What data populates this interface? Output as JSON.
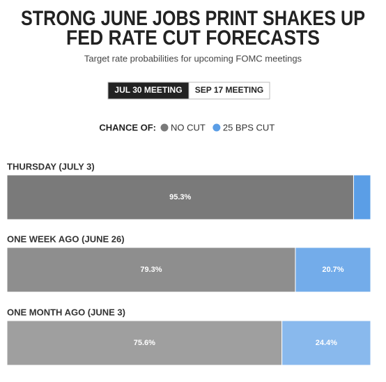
{
  "chart_data": {
    "type": "stacked-bar",
    "title": [
      "STRONG JUNE JOBS PRINT SHAKES UP",
      "FED RATE CUT FORECASTS"
    ],
    "subtitle": "Target rate probabilities for upcoming FOMC meetings",
    "tabs": [
      "JUL 30 MEETING",
      "SEP 17 MEETING"
    ],
    "active_tab": 0,
    "legend_title": "CHANCE OF:",
    "categories": [
      "THURSDAY (JULY 3)",
      "ONE WEEK AGO (JUNE 26)",
      "ONE MONTH AGO (JUNE 3)"
    ],
    "series": [
      {
        "name": "NO CUT",
        "color": "#7a7a7a",
        "values": [
          95.3,
          79.3,
          75.6
        ],
        "value_labels": [
          "95.3%",
          "79.3%",
          "75.6%"
        ]
      },
      {
        "name": "25 BPS CUT",
        "color": "#5b9ee6",
        "values": [
          4.7,
          20.7,
          24.4
        ],
        "value_labels": [
          null,
          "20.7%",
          "24.4%"
        ]
      }
    ],
    "xlim": [
      0,
      100
    ]
  }
}
